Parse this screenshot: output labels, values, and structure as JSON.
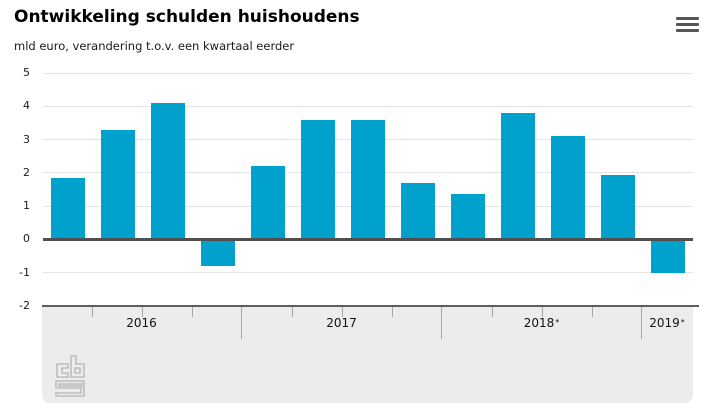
{
  "header": {
    "title": "Ontwikkeling schulden huishoudens",
    "subtitle": "mld euro, verandering t.o.v. een kwartaal eerder"
  },
  "menu": {
    "icon": "hamburger-menu-icon"
  },
  "colors": {
    "bar": "#00a1cd",
    "zero_line": "#4f4f4f",
    "grid_line": "#e4e4e4",
    "axis_line": "#5e5e5e",
    "panel_bg": "#ececec",
    "tick": "#a8a8a8",
    "text": "#000000"
  },
  "chart_data": {
    "type": "bar",
    "title": "Ontwikkeling schulden huishoudens",
    "subtitle": "mld euro, verandering t.o.v. een kwartaal eerder",
    "ylabel": "mld euro, verandering t.o.v. een kwartaal eerder",
    "xlabel": "",
    "ylim": [
      -2,
      5
    ],
    "y_ticks": [
      5,
      4,
      3,
      2,
      1,
      0,
      -1,
      -2
    ],
    "grid": true,
    "legend": false,
    "x_groups": [
      {
        "label": "2016",
        "marker": "",
        "quarters": 4
      },
      {
        "label": "2017",
        "marker": "",
        "quarters": 4
      },
      {
        "label": "2018",
        "marker": "*",
        "quarters": 4
      },
      {
        "label": "2019",
        "marker": "*",
        "quarters": 1
      }
    ],
    "series": [
      {
        "name": "Ontwikkeling schulden huishoudens",
        "values": [
          1.85,
          3.3,
          4.1,
          -0.8,
          2.2,
          3.6,
          3.6,
          1.7,
          1.35,
          3.8,
          3.1,
          1.95,
          -1.0
        ]
      }
    ]
  },
  "footer": {
    "logo": "cbs-logo"
  }
}
